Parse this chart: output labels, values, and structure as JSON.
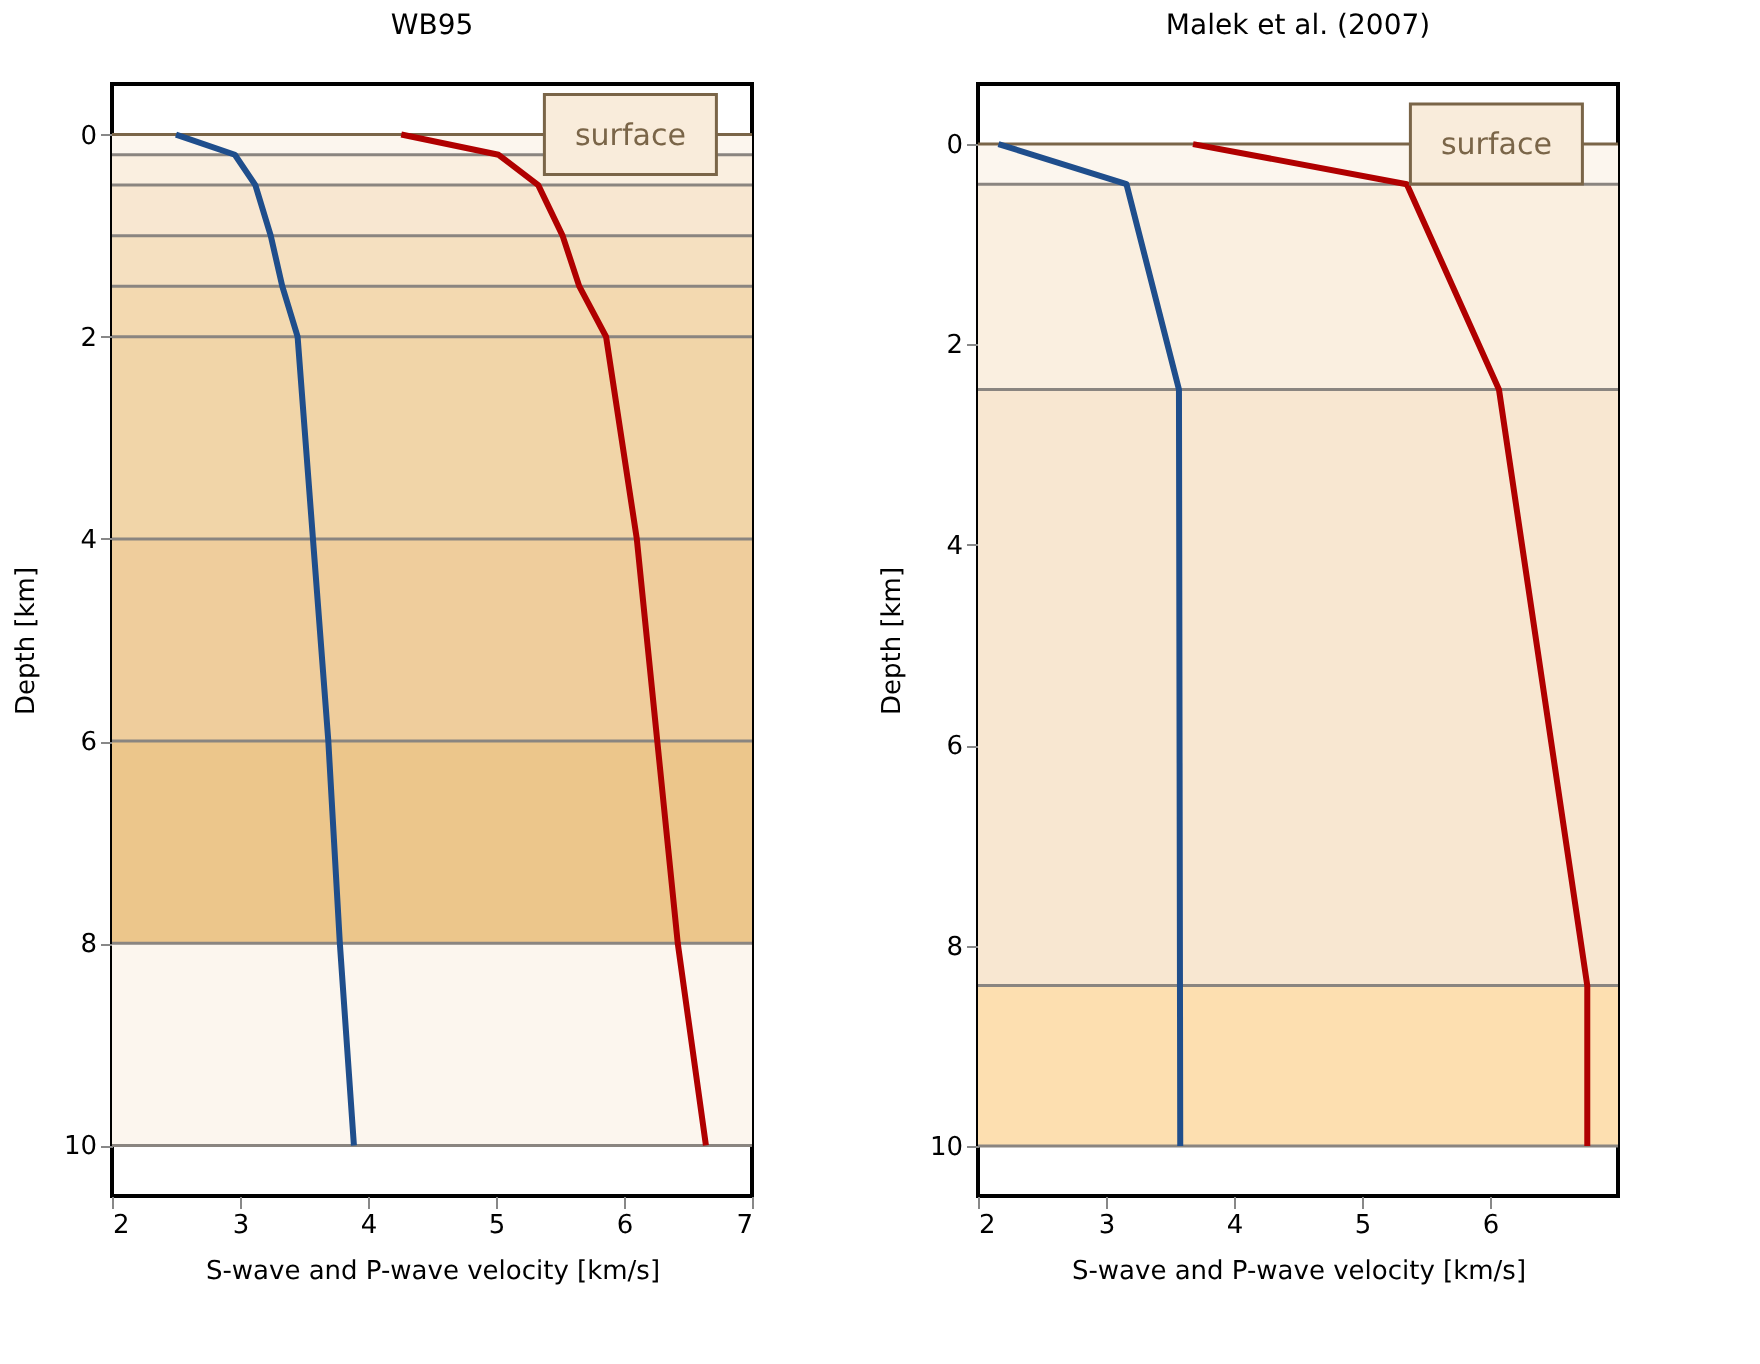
{
  "chart_data": [
    {
      "type": "line",
      "title": "WB95",
      "xlabel": "S-wave and P-wave velocity [km/s]",
      "ylabel": "Depth [km]",
      "xlim": [
        2,
        7
      ],
      "xticks": [
        2,
        3,
        4,
        5,
        6,
        7
      ],
      "ylim": [
        10.5,
        -0.5
      ],
      "yticks": [
        0,
        2,
        4,
        6,
        8,
        10
      ],
      "grid": false,
      "series": [
        {
          "color": "#1f4e8c",
          "x": [
            2.5,
            2.96,
            3.12,
            3.24,
            3.33,
            3.45,
            3.57,
            3.69,
            3.78,
            3.89
          ],
          "values": [
            0,
            0.2,
            0.5,
            1.0,
            1.5,
            2,
            4,
            6,
            8,
            10
          ]
        },
        {
          "color": "#b00000",
          "x": [
            4.26,
            5.02,
            5.33,
            5.52,
            5.65,
            5.86,
            6.1,
            6.26,
            6.42,
            6.64
          ],
          "values": [
            0,
            0.2,
            0.5,
            1.0,
            1.5,
            2,
            4,
            6,
            8,
            10
          ]
        }
      ],
      "bands": [
        {
          "axis": "y",
          "from": 0,
          "to": 0.2,
          "color": "#fcf6ee"
        },
        {
          "axis": "y",
          "from": 0.2,
          "to": 0.5,
          "color": "#faefe0"
        },
        {
          "axis": "y",
          "from": 0.5,
          "to": 1.0,
          "color": "#f8e7d1"
        },
        {
          "axis": "y",
          "from": 1.0,
          "to": 1.5,
          "color": "#f5e0c0"
        },
        {
          "axis": "y",
          "from": 1.5,
          "to": 2,
          "color": "#f3d9b0"
        },
        {
          "axis": "y",
          "from": 2,
          "to": 4,
          "color": "#f1d5a8"
        },
        {
          "axis": "y",
          "from": 4,
          "to": 6,
          "color": "#efcd9c"
        },
        {
          "axis": "y",
          "from": 6,
          "to": 8,
          "color": "#ecc68b"
        },
        {
          "axis": "y",
          "from": 8,
          "to": 10,
          "color": "#fcf6ee"
        }
      ],
      "ref_lines": [
        {
          "axis": "y",
          "value": 0,
          "color": "#7a6548"
        },
        {
          "axis": "y",
          "value": 0.2,
          "color": "#8a8580"
        },
        {
          "axis": "y",
          "value": 0.5,
          "color": "#8a8580"
        },
        {
          "axis": "y",
          "value": 1.0,
          "color": "#8a8580"
        },
        {
          "axis": "y",
          "value": 1.5,
          "color": "#8a8580"
        },
        {
          "axis": "y",
          "value": 2,
          "color": "#8a8580"
        },
        {
          "axis": "y",
          "value": 4,
          "color": "#8a8580"
        },
        {
          "axis": "y",
          "value": 6,
          "color": "#8a8580"
        },
        {
          "axis": "y",
          "value": 8,
          "color": "#8a8580"
        },
        {
          "axis": "y",
          "value": 10,
          "color": "#8a8580"
        }
      ],
      "annotations": [
        {
          "text": "surface",
          "x": 6.05,
          "y": 0
        }
      ]
    },
    {
      "type": "line",
      "title": "Malek et al. (2007)",
      "xlabel": "S-wave and P-wave velocity [km/s]",
      "ylabel": "Depth [km]",
      "xlim": [
        2,
        7
      ],
      "xticks": [
        2,
        3,
        4,
        5,
        6
      ],
      "ylim": [
        10.5,
        -0.6
      ],
      "yticks": [
        0,
        2,
        4,
        6,
        8,
        10
      ],
      "grid": false,
      "series": [
        {
          "color": "#1f4e8c",
          "x": [
            2.16,
            3.16,
            3.57,
            3.58
          ],
          "values": [
            0,
            0.4,
            2.45,
            10
          ]
        },
        {
          "color": "#b00000",
          "x": [
            3.68,
            5.35,
            6.07,
            6.76,
            6.76
          ],
          "values": [
            0,
            0.4,
            2.45,
            8.4,
            10
          ]
        }
      ],
      "bands": [
        {
          "axis": "y",
          "from": 0,
          "to": 0.4,
          "color": "#fcf6ee"
        },
        {
          "axis": "y",
          "from": 0.4,
          "to": 2.45,
          "color": "#faefe0"
        },
        {
          "axis": "y",
          "from": 2.45,
          "to": 8.4,
          "color": "#f8e7d1"
        },
        {
          "axis": "y",
          "from": 8.4,
          "to": 10,
          "color": "#fddfb0"
        }
      ],
      "ref_lines": [
        {
          "axis": "y",
          "value": 0,
          "color": "#7a6548"
        },
        {
          "axis": "y",
          "value": 0.4,
          "color": "#8a8580"
        },
        {
          "axis": "y",
          "value": 2.45,
          "color": "#8a8580"
        },
        {
          "axis": "y",
          "value": 8.4,
          "color": "#8a8580"
        },
        {
          "axis": "y",
          "value": 10,
          "color": "#8a8580"
        }
      ],
      "annotations": [
        {
          "text": "surface",
          "x": 6.05,
          "y": 0
        }
      ]
    }
  ]
}
